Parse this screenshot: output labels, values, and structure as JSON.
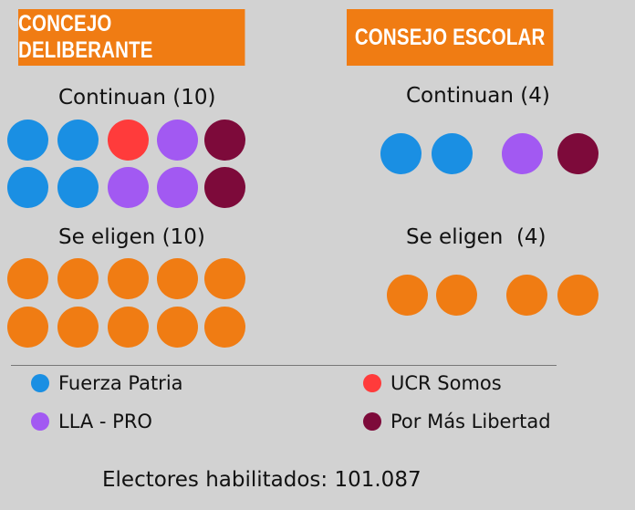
{
  "colors": {
    "fuerza_patria": "#1a8fe3",
    "ucr_somos": "#ff3b3b",
    "lla_pro": "#a259f2",
    "por_mas_libertad": "#7d0a3a",
    "eligen": "#f07c13"
  },
  "panels": {
    "concejo": {
      "title": "CONCEJO DELIBERANTE",
      "continuan_label": "Continuan (10)",
      "eligen_label": "Se eligen (10)"
    },
    "consejo": {
      "title": "CONSEJO ESCOLAR",
      "continuan_label": "Continuan (4)",
      "eligen_label": "Se eligen  (4)"
    }
  },
  "legend": [
    {
      "label": "Fuerza Patria",
      "color": "#1a8fe3"
    },
    {
      "label": "UCR Somos",
      "color": "#ff3b3b"
    },
    {
      "label": "LLA - PRO",
      "color": "#a259f2"
    },
    {
      "label": "Por Más Libertad",
      "color": "#7d0a3a"
    }
  ],
  "footer": "Electores habilitados: 101.087",
  "chart_data": [
    {
      "type": "dot-grid",
      "title": "CONCEJO DELIBERANTE",
      "groups": [
        {
          "name": "Continuan (10)",
          "counts": {
            "Fuerza Patria": 4,
            "UCR Somos": 1,
            "LLA - PRO": 3,
            "Por Más Libertad": 2
          },
          "dots": [
            "Fuerza Patria",
            "Fuerza Patria",
            "UCR Somos",
            "LLA - PRO",
            "Por Más Libertad",
            "Fuerza Patria",
            "Fuerza Patria",
            "LLA - PRO",
            "LLA - PRO",
            "Por Más Libertad"
          ]
        },
        {
          "name": "Se eligen (10)",
          "count": 10
        }
      ]
    },
    {
      "type": "dot-grid",
      "title": "CONSEJO ESCOLAR",
      "groups": [
        {
          "name": "Continuan (4)",
          "counts": {
            "Fuerza Patria": 2,
            "LLA - PRO": 1,
            "Por Más Libertad": 1
          },
          "dots": [
            "Fuerza Patria",
            "Fuerza Patria",
            "LLA - PRO",
            "Por Más Libertad"
          ]
        },
        {
          "name": "Se eligen  (4)",
          "count": 4
        }
      ]
    }
  ]
}
